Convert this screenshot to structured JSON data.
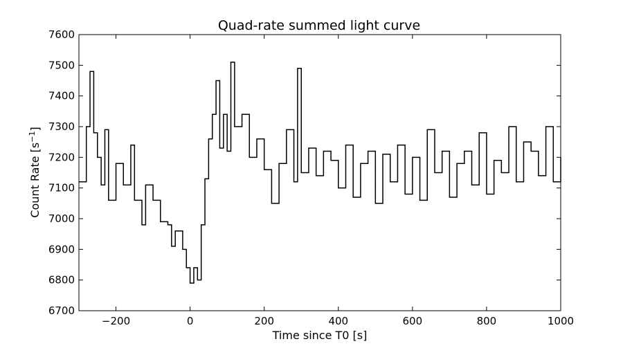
{
  "chart_data": {
    "type": "line",
    "title": "Quad-rate summed light curve",
    "xlabel": "Time since T0 [s]",
    "ylabel_main": "Count Rate [s",
    "ylabel_sup": "−1",
    "ylabel_end": "]",
    "xlim": [
      -300,
      1000
    ],
    "ylim": [
      6700,
      7600
    ],
    "x_ticks": [
      -200,
      0,
      200,
      400,
      600,
      800,
      1000
    ],
    "x_tick_labels": [
      "−200",
      "0",
      "200",
      "400",
      "600",
      "800",
      "1000"
    ],
    "y_ticks": [
      6700,
      6800,
      6900,
      7000,
      7100,
      7200,
      7300,
      7400,
      7500,
      7600
    ],
    "y_tick_labels": [
      "6700",
      "6800",
      "6900",
      "7000",
      "7100",
      "7200",
      "7300",
      "7400",
      "7500",
      "7600"
    ],
    "grid": false,
    "line_color": "#000000",
    "series": [
      {
        "points": [
          [
            -300,
            7120
          ],
          [
            -280,
            7300
          ],
          [
            -270,
            7480
          ],
          [
            -260,
            7280
          ],
          [
            -250,
            7200
          ],
          [
            -240,
            7110
          ],
          [
            -230,
            7290
          ],
          [
            -220,
            7060
          ],
          [
            -200,
            7180
          ],
          [
            -180,
            7110
          ],
          [
            -160,
            7240
          ],
          [
            -150,
            7060
          ],
          [
            -130,
            6980
          ],
          [
            -120,
            7110
          ],
          [
            -100,
            7060
          ],
          [
            -80,
            6990
          ],
          [
            -60,
            6980
          ],
          [
            -50,
            6910
          ],
          [
            -40,
            6960
          ],
          [
            -20,
            6900
          ],
          [
            -10,
            6840
          ],
          [
            0,
            6790
          ],
          [
            10,
            6840
          ],
          [
            20,
            6800
          ],
          [
            30,
            6980
          ],
          [
            40,
            7130
          ],
          [
            50,
            7260
          ],
          [
            60,
            7340
          ],
          [
            70,
            7450
          ],
          [
            80,
            7230
          ],
          [
            90,
            7340
          ],
          [
            100,
            7220
          ],
          [
            110,
            7510
          ],
          [
            120,
            7300
          ],
          [
            140,
            7340
          ],
          [
            160,
            7200
          ],
          [
            180,
            7260
          ],
          [
            200,
            7160
          ],
          [
            220,
            7050
          ],
          [
            240,
            7180
          ],
          [
            260,
            7290
          ],
          [
            280,
            7120
          ],
          [
            290,
            7490
          ],
          [
            300,
            7150
          ],
          [
            320,
            7230
          ],
          [
            340,
            7140
          ],
          [
            360,
            7220
          ],
          [
            380,
            7190
          ],
          [
            400,
            7100
          ],
          [
            420,
            7240
          ],
          [
            440,
            7070
          ],
          [
            460,
            7180
          ],
          [
            480,
            7220
          ],
          [
            500,
            7050
          ],
          [
            520,
            7210
          ],
          [
            540,
            7120
          ],
          [
            560,
            7240
          ],
          [
            580,
            7080
          ],
          [
            600,
            7200
          ],
          [
            620,
            7060
          ],
          [
            640,
            7290
          ],
          [
            660,
            7150
          ],
          [
            680,
            7220
          ],
          [
            700,
            7070
          ],
          [
            720,
            7180
          ],
          [
            740,
            7220
          ],
          [
            760,
            7110
          ],
          [
            780,
            7280
          ],
          [
            800,
            7080
          ],
          [
            820,
            7190
          ],
          [
            840,
            7150
          ],
          [
            860,
            7300
          ],
          [
            880,
            7120
          ],
          [
            900,
            7250
          ],
          [
            920,
            7220
          ],
          [
            940,
            7140
          ],
          [
            960,
            7300
          ],
          [
            980,
            7120
          ],
          [
            1000,
            7200
          ]
        ]
      }
    ]
  }
}
